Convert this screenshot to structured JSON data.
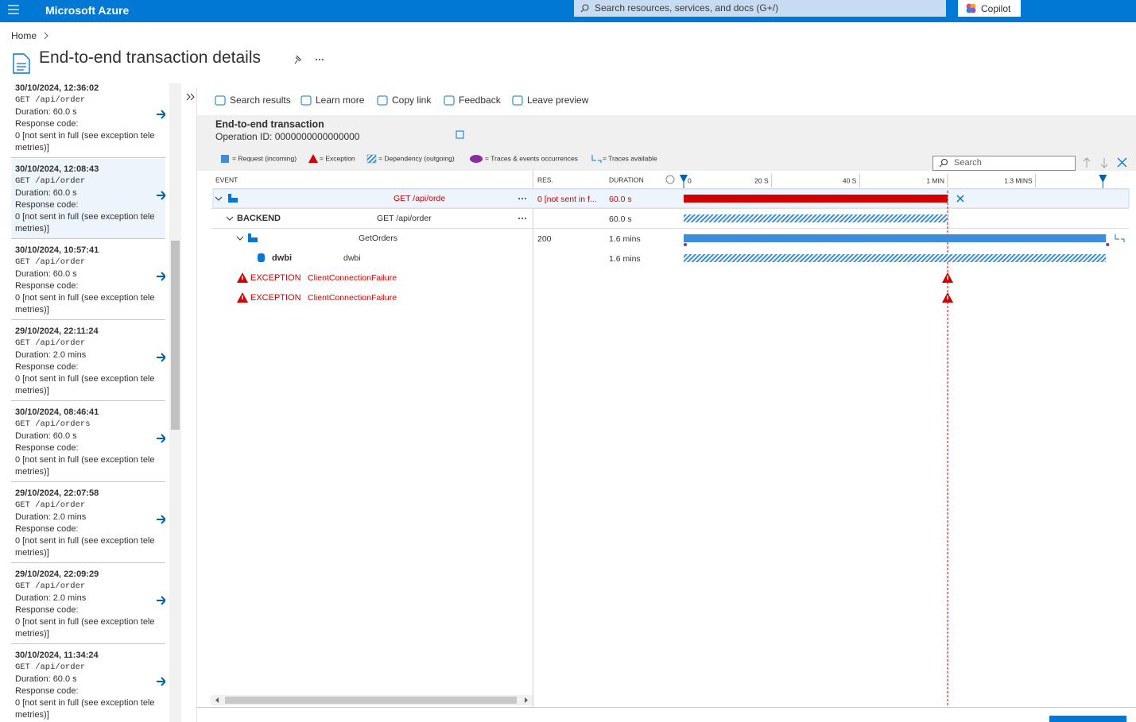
{
  "topbar": {
    "brand": "Microsoft Azure",
    "search_placeholder": "Search resources, services, and docs (G+/)",
    "copilot": "Copilot"
  },
  "breadcrumb": [
    "Home"
  ],
  "title": "End-to-end transaction details",
  "results": [
    {
      "time": "30/10/2024, 12:36:02",
      "request": "GET /api/order",
      "duration": "Duration: 60.0 s",
      "response_label": "Response code:",
      "response": "0 [not sent in full (see exception telemetries)]"
    },
    {
      "time": "30/10/2024, 12:08:43",
      "request": "GET /api/order",
      "duration": "Duration: 60.0 s",
      "response_label": "Response code:",
      "response": "0 [not sent in full (see exception telemetries)]"
    },
    {
      "time": "30/10/2024, 10:57:41",
      "request": "GET /api/order",
      "duration": "Duration: 60.0 s",
      "response_label": "Response code:",
      "response": "0 [not sent in full (see exception telemetries)]"
    },
    {
      "time": "29/10/2024, 22:11:24",
      "request": "GET /api/order",
      "duration": "Duration: 2.0 mins",
      "response_label": "Response code:",
      "response": "0 [not sent in full (see exception telemetries)]"
    },
    {
      "time": "30/10/2024, 08:46:41",
      "request": "GET /api/orders",
      "duration": "Duration: 60.0 s",
      "response_label": "Response code:",
      "response": "0 [not sent in full (see exception telemetries)]"
    },
    {
      "time": "29/10/2024, 22:07:58",
      "request": "GET /api/order",
      "duration": "Duration: 2.0 mins",
      "response_label": "Response code:",
      "response": "0 [not sent in full (see exception telemetries)]"
    },
    {
      "time": "29/10/2024, 22:09:29",
      "request": "GET /api/order",
      "duration": "Duration: 2.0 mins",
      "response_label": "Response code:",
      "response": "0 [not sent in full (see exception telemetries)]"
    },
    {
      "time": "30/10/2024, 11:34:24",
      "request": "GET /api/order",
      "duration": "Duration: 60.0 s",
      "response_label": "Response code:",
      "response": "0 [not sent in full (see exception telemetries)]"
    }
  ],
  "toolbar": [
    "Search results",
    "Learn more",
    "Copy link",
    "Feedback",
    "Leave preview"
  ],
  "transaction": {
    "heading": "End-to-end transaction",
    "operation_id": "Operation ID: 0000000000000000"
  },
  "legend": [
    "= Request (incoming)",
    "= Exception",
    "= Dependency (outgoing)",
    "= Traces & events occurrences",
    "= Traces available"
  ],
  "search_placeholder": "Search",
  "columns": [
    "EVENT",
    "RES.",
    "DURATION"
  ],
  "timeline": {
    "xlim": [
      0,
      101.2
    ],
    "xticks": [
      {
        "value": 0,
        "label": "0"
      },
      {
        "value": 20,
        "label": "20 S"
      },
      {
        "value": 40,
        "label": "40 S"
      },
      {
        "value": 60,
        "label": "1 MIN"
      },
      {
        "value": 80,
        "label": "1.3 MINS"
      }
    ],
    "selection": [
      0,
      95.3
    ]
  },
  "rows": [
    {
      "kind": "request",
      "event": "GET /api/orde",
      "result": "0 [not sent in f...",
      "duration": "60.0 s",
      "start": 0,
      "end": 60,
      "color": "#d40000"
    },
    {
      "kind": "dependency",
      "label": "BACKEND",
      "event": "GET /api/order",
      "duration": "60.0 s",
      "start": 0,
      "end": 60,
      "color": "#3a8edb"
    },
    {
      "kind": "request",
      "event": "GetOrders",
      "result": "200",
      "duration": "1.6 mins",
      "start": 0,
      "end": 96,
      "color": "#3a8edb"
    },
    {
      "kind": "dependency",
      "label": "dwbi",
      "event": "dwbi",
      "duration": "1.6 mins",
      "start": 0,
      "end": 96,
      "color": "#3a8edb"
    },
    {
      "kind": "exception",
      "label": "EXCEPTION",
      "event": "ClientConnectionFailure",
      "at": 60,
      "color": "#d40000"
    },
    {
      "kind": "exception",
      "label": "EXCEPTION",
      "event": "ClientConnectionFailure",
      "at": 60,
      "color": "#d40000"
    }
  ]
}
